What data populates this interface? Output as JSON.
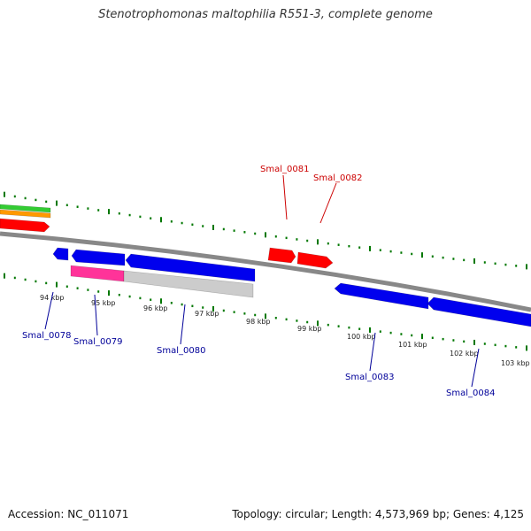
{
  "title": "Stenotrophomonas maltophilia R551-3, complete genome",
  "footer": {
    "accession": "Accession: NC_011071",
    "topology": "Topology: circular; Length: 4,573,969 bp; Genes: 4,125"
  },
  "colors": {
    "forward_gene": "#ff0000",
    "reverse_gene": "#0000ee",
    "backbone": "#888888",
    "tick": "#007700",
    "label_forward": "#cc0000",
    "label_reverse": "#000099",
    "track_green": "#33cc33",
    "track_orange": "#ff9900",
    "feature_pink": "#ff3399",
    "feature_gray": "#cccccc"
  },
  "kbp_ticks": [
    "94 kbp",
    "95 kbp",
    "96 kbp",
    "97 kbp",
    "98 kbp",
    "99 kbp",
    "100 kbp",
    "101 kbp",
    "102 kbp",
    "103 kbp"
  ],
  "gene_labels": {
    "forward": [
      "Smal_0081",
      "Smal_0082"
    ],
    "reverse": [
      "Smal_0078",
      "Smal_0079",
      "Smal_0080",
      "Smal_0083",
      "Smal_0084"
    ]
  }
}
